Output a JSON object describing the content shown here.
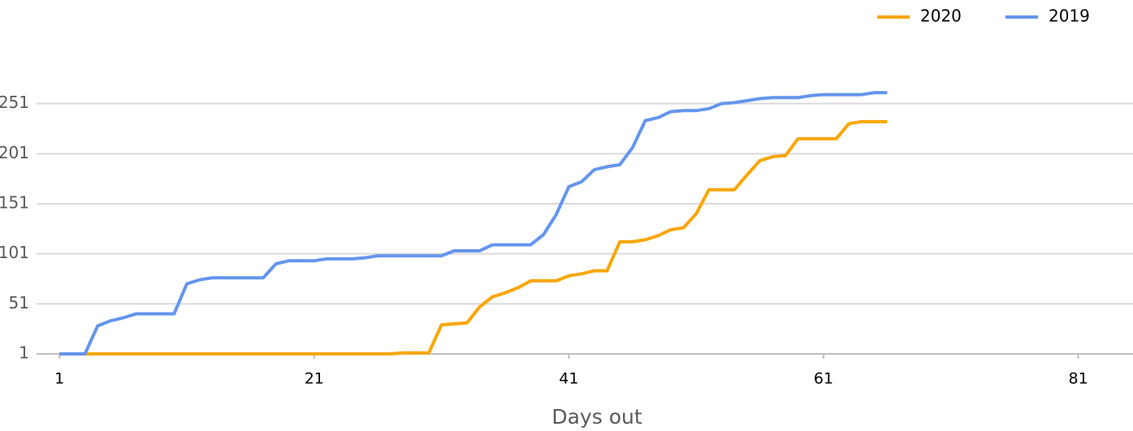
{
  "chart_data": {
    "type": "line",
    "x_label": "Days out",
    "x": [
      1,
      2,
      3,
      4,
      5,
      6,
      7,
      8,
      9,
      10,
      11,
      12,
      13,
      14,
      15,
      16,
      17,
      18,
      19,
      20,
      21,
      22,
      23,
      24,
      25,
      26,
      27,
      28,
      29,
      30,
      31,
      32,
      33,
      34,
      35,
      36,
      37,
      38,
      39,
      40,
      41,
      42,
      43,
      44,
      45,
      46,
      47,
      48,
      49,
      50,
      51,
      52,
      53,
      54,
      55,
      56,
      57,
      58,
      59,
      60,
      61,
      62,
      63,
      64,
      65,
      66
    ],
    "series": [
      {
        "name": "2020",
        "color": "#f9a602",
        "values": [
          1,
          1,
          1,
          1,
          1,
          1,
          1,
          1,
          1,
          1,
          1,
          1,
          1,
          1,
          1,
          1,
          1,
          1,
          1,
          1,
          1,
          1,
          1,
          1,
          1,
          1,
          1,
          2,
          2,
          2,
          30,
          31,
          32,
          48,
          58,
          62,
          67,
          74,
          74,
          74,
          79,
          81,
          84,
          84,
          113,
          113,
          115,
          119,
          125,
          127,
          141,
          165,
          165,
          165,
          180,
          194,
          198,
          199,
          216,
          216,
          216,
          216,
          231,
          233,
          233,
          233
        ]
      },
      {
        "name": "2019",
        "color": "#6495ed",
        "values": [
          1,
          1,
          1,
          29,
          34,
          37,
          41,
          41,
          41,
          41,
          71,
          75,
          77,
          77,
          77,
          77,
          77,
          91,
          94,
          94,
          94,
          96,
          96,
          96,
          97,
          99,
          99,
          99,
          99,
          99,
          99,
          104,
          104,
          104,
          110,
          110,
          110,
          110,
          120,
          140,
          168,
          173,
          185,
          188,
          190,
          207,
          234,
          237,
          243,
          244,
          244,
          246,
          251,
          252,
          254,
          256,
          257,
          257,
          257,
          259,
          260,
          260,
          260,
          260,
          262,
          262
        ]
      }
    ],
    "xlim": [
      -0.8,
      85.3
    ],
    "xticks": [
      1,
      21,
      41,
      61,
      81
    ],
    "ylim": [
      1,
      301
    ],
    "yticks": [
      1,
      51,
      101,
      151,
      201,
      251
    ],
    "grid": true,
    "legend": "top-right"
  }
}
